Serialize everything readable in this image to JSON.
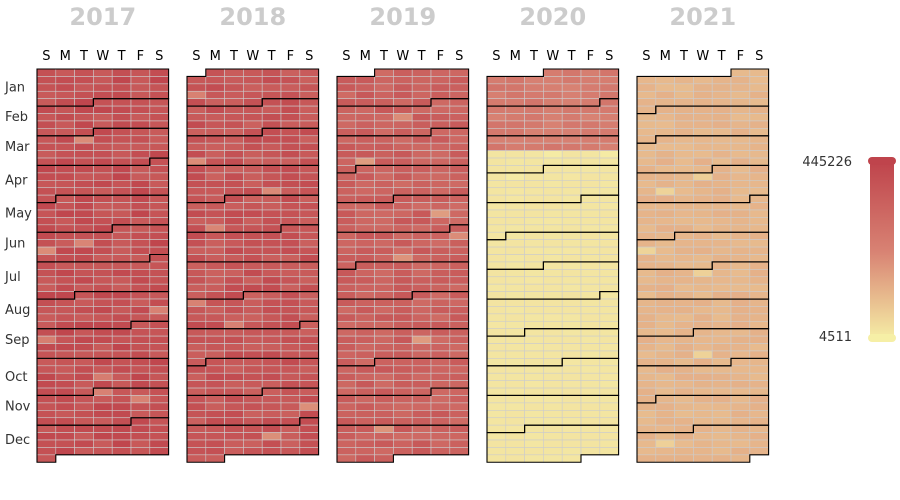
{
  "chart_data": {
    "type": "heatmap",
    "title": "",
    "years": [
      "2017",
      "2018",
      "2019",
      "2020",
      "2021"
    ],
    "day_of_week_labels": [
      "S",
      "M",
      "T",
      "W",
      "T",
      "F",
      "S"
    ],
    "month_labels": [
      "Jan",
      "Feb",
      "Mar",
      "Apr",
      "May",
      "Jun",
      "Jul",
      "Aug",
      "Sep",
      "Oct",
      "Nov",
      "Dec"
    ],
    "visual_map": {
      "min": 4511,
      "max": 445226,
      "min_label": "4511",
      "max_label": "445226",
      "colors": [
        "#f6efa6",
        "#d88273",
        "#bf444c"
      ]
    },
    "typical_daily_values": {
      "2017": 400000,
      "2018": 380000,
      "2019": 340000,
      "2020_jan_to_mid_mar": 250000,
      "2020_mid_mar_to_dec": 25000,
      "2021": 120000
    },
    "year_start_weekday": [
      0,
      1,
      2,
      3,
      5
    ],
    "year_lengths": [
      365,
      365,
      365,
      366,
      365
    ],
    "grid": false,
    "legend": "right"
  }
}
